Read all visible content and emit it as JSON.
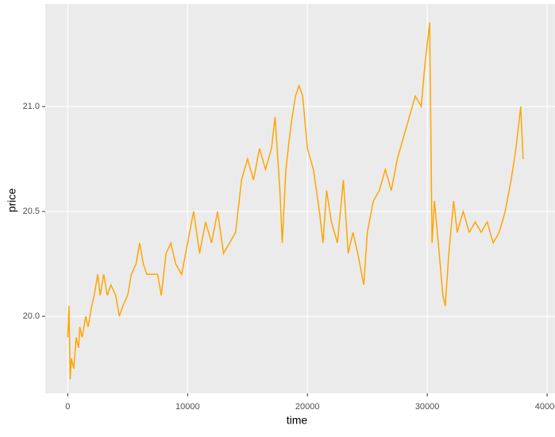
{
  "chart_data": {
    "type": "line",
    "x_label": "time",
    "y_label": "price",
    "x": [
      0,
      100,
      200,
      300,
      500,
      700,
      900,
      1000,
      1200,
      1500,
      1700,
      2000,
      2200,
      2500,
      2700,
      3000,
      3300,
      3600,
      4000,
      4300,
      4600,
      5000,
      5300,
      5700,
      6000,
      6300,
      6600,
      7000,
      7500,
      7800,
      8200,
      8600,
      9000,
      9500,
      10000,
      10500,
      11000,
      11500,
      12000,
      12500,
      13000,
      13500,
      14000,
      14500,
      15000,
      15500,
      16000,
      16500,
      17000,
      17300,
      17700,
      17900,
      18200,
      18600,
      19000,
      19300,
      19600,
      20000,
      20500,
      21000,
      21300,
      21600,
      22000,
      22500,
      23000,
      23400,
      23800,
      24200,
      24700,
      25000,
      25500,
      26000,
      26500,
      27000,
      27500,
      28000,
      28500,
      29000,
      29500,
      29800,
      30200,
      30400,
      30600,
      31000,
      31300,
      31500,
      31800,
      32200,
      32500,
      33000,
      33500,
      34000,
      34500,
      35000,
      35500,
      36000,
      36500,
      37000,
      37400,
      37800,
      38000
    ],
    "series": [
      {
        "name": "price",
        "color": "#FFA500",
        "values": [
          19.9,
          20.05,
          19.7,
          19.8,
          19.75,
          19.9,
          19.85,
          19.95,
          19.9,
          20.0,
          19.95,
          20.05,
          20.1,
          20.2,
          20.1,
          20.2,
          20.1,
          20.15,
          20.1,
          20.0,
          20.05,
          20.1,
          20.2,
          20.25,
          20.35,
          20.25,
          20.2,
          20.2,
          20.2,
          20.1,
          20.3,
          20.35,
          20.25,
          20.2,
          20.35,
          20.5,
          20.3,
          20.45,
          20.35,
          20.5,
          20.3,
          20.35,
          20.4,
          20.65,
          20.75,
          20.65,
          20.8,
          20.7,
          20.8,
          20.95,
          20.6,
          20.35,
          20.7,
          20.9,
          21.05,
          21.1,
          21.05,
          20.8,
          20.7,
          20.5,
          20.35,
          20.6,
          20.45,
          20.35,
          20.65,
          20.3,
          20.4,
          20.3,
          20.15,
          20.4,
          20.55,
          20.6,
          20.7,
          20.6,
          20.75,
          20.85,
          20.95,
          21.05,
          21.0,
          21.2,
          21.4,
          20.35,
          20.55,
          20.3,
          20.1,
          20.05,
          20.3,
          20.55,
          20.4,
          20.5,
          20.4,
          20.45,
          20.4,
          20.45,
          20.35,
          20.4,
          20.5,
          20.65,
          20.8,
          21.0,
          20.75
        ]
      }
    ],
    "xlim": [
      -1880,
      40660
    ],
    "ylim": [
      19.633,
      21.489
    ],
    "xticks": [
      0,
      10000,
      20000,
      30000,
      40000
    ],
    "yticks": [
      {
        "value": 20,
        "label": "20.0"
      },
      {
        "value": 20.5,
        "label": "20.5"
      },
      {
        "value": 21,
        "label": "21.0"
      }
    ],
    "grid": true
  }
}
